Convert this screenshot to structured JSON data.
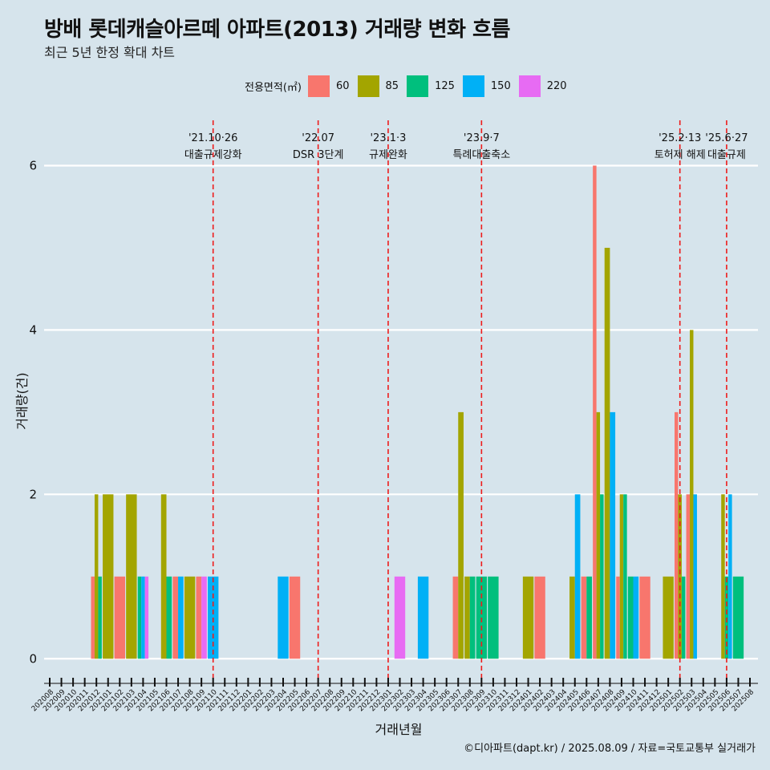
{
  "title": "방배 롯데캐슬아르떼 아파트(2013) 거래량 변화 흐름",
  "subtitle": "최근 5년 한정 확대 차트",
  "caption": "©디아파트(dapt.kr) / 2025.08.09 / 자료=국토교통부 실거래가",
  "legend": {
    "title": "전용면적(㎡)"
  },
  "chart_data": {
    "type": "bar",
    "xlabel": "거래년월",
    "ylabel": "거래량(건)",
    "ylim": [
      -0.3,
      6.6
    ],
    "yticks": [
      0,
      2,
      4,
      6
    ],
    "months": [
      "202008",
      "202009",
      "202010",
      "202011",
      "202012",
      "202101",
      "202102",
      "202103",
      "202104",
      "202105",
      "202106",
      "202107",
      "202108",
      "202109",
      "202110",
      "202111",
      "202112",
      "202201",
      "202202",
      "202203",
      "202204",
      "202205",
      "202206",
      "202207",
      "202208",
      "202209",
      "202210",
      "202211",
      "202212",
      "202301",
      "202302",
      "202303",
      "202304",
      "202305",
      "202306",
      "202307",
      "202308",
      "202309",
      "202310",
      "202311",
      "202312",
      "202401",
      "202402",
      "202403",
      "202404",
      "202405",
      "202406",
      "202407",
      "202408",
      "202409",
      "202410",
      "202411",
      "202412",
      "202501",
      "202502",
      "202503",
      "202504",
      "202505",
      "202506",
      "202507",
      "202508"
    ],
    "series": [
      {
        "name": "60",
        "color": "#F8766D",
        "points": [
          [
            "202012",
            1
          ],
          [
            "202102",
            1
          ],
          [
            "202107",
            1
          ],
          [
            "202109",
            1
          ],
          [
            "202205",
            1
          ],
          [
            "202307",
            1
          ],
          [
            "202402",
            1
          ],
          [
            "202406",
            1
          ],
          [
            "202407",
            6
          ],
          [
            "202409",
            1
          ],
          [
            "202411",
            1
          ],
          [
            "202502",
            3
          ],
          [
            "202503",
            2
          ]
        ]
      },
      {
        "name": "85",
        "color": "#A3A500",
        "points": [
          [
            "202012",
            2
          ],
          [
            "202101",
            2
          ],
          [
            "202103",
            2
          ],
          [
            "202106",
            2
          ],
          [
            "202108",
            1
          ],
          [
            "202307",
            3
          ],
          [
            "202308",
            1
          ],
          [
            "202401",
            1
          ],
          [
            "202405",
            1
          ],
          [
            "202407",
            3
          ],
          [
            "202408",
            5
          ],
          [
            "202409",
            2
          ],
          [
            "202501",
            1
          ],
          [
            "202502",
            2
          ],
          [
            "202503",
            4
          ],
          [
            "202506",
            2
          ]
        ]
      },
      {
        "name": "125",
        "color": "#00BF7D",
        "points": [
          [
            "202012",
            1
          ],
          [
            "202104",
            1
          ],
          [
            "202106",
            1
          ],
          [
            "202308",
            1
          ],
          [
            "202309",
            1
          ],
          [
            "202310",
            1
          ],
          [
            "202406",
            1
          ],
          [
            "202407",
            2
          ],
          [
            "202409",
            2
          ],
          [
            "202410",
            1
          ],
          [
            "202502",
            1
          ],
          [
            "202506",
            1
          ],
          [
            "202507",
            1
          ]
        ]
      },
      {
        "name": "150",
        "color": "#00B0F6",
        "points": [
          [
            "202104",
            1
          ],
          [
            "202107",
            1
          ],
          [
            "202110",
            1
          ],
          [
            "202204",
            1
          ],
          [
            "202304",
            1
          ],
          [
            "202405",
            2
          ],
          [
            "202408",
            3
          ],
          [
            "202410",
            1
          ],
          [
            "202503",
            2
          ],
          [
            "202506",
            2
          ]
        ]
      },
      {
        "name": "220",
        "color": "#E76BF3",
        "points": [
          [
            "202104",
            1
          ],
          [
            "202109",
            1
          ],
          [
            "202302",
            1
          ]
        ]
      }
    ],
    "events": [
      {
        "date": "202110",
        "label1": "'21.10·26",
        "label2": "대출규제강화"
      },
      {
        "date": "202207",
        "label1": "'22.07",
        "label2": "DSR 3단계"
      },
      {
        "date": "202301",
        "label1": "'23.1·3",
        "label2": "규제완화"
      },
      {
        "date": "202309",
        "label1": "'23.9·7",
        "label2": "특례대출축소"
      },
      {
        "date": "202502",
        "label1": "'25.2·13",
        "label2": "토허제 해제"
      },
      {
        "date": "202506",
        "label1": "'25.6·27",
        "label2": "대출규제"
      }
    ]
  }
}
